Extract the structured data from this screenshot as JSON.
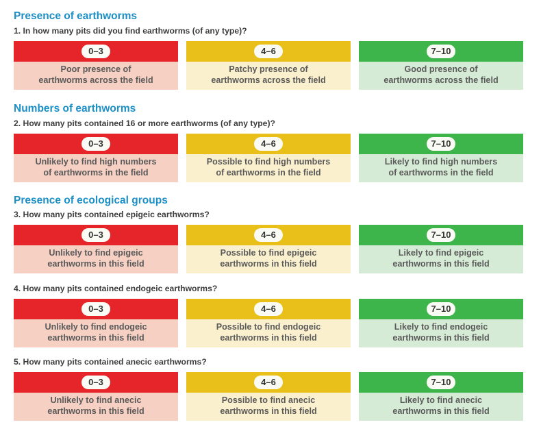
{
  "colors": {
    "section_title": "#1b8fc6",
    "red_header": "#e5252a",
    "red_body": "#f5d0c3",
    "amber_header": "#e9bf1a",
    "amber_body": "#fbf0cd",
    "green_header": "#3db54a",
    "green_body": "#d6ebd6"
  },
  "sections": [
    {
      "title": "Presence of earthworms",
      "questions": [
        {
          "question": "1. In how many pits did you find earthworms (of any type)?",
          "cards": [
            {
              "range": "0–3",
              "color": "red",
              "text": "Poor presence of\nearthworms across the field"
            },
            {
              "range": "4–6",
              "color": "amber",
              "text": "Patchy presence of\nearthworms across the field"
            },
            {
              "range": "7–10",
              "color": "green",
              "text": "Good presence of\nearthworms across the field"
            }
          ]
        }
      ]
    },
    {
      "title": "Numbers of earthworms",
      "questions": [
        {
          "question": "2. How many pits contained 16 or more earthworms (of any type)?",
          "cards": [
            {
              "range": "0–3",
              "color": "red",
              "text": "Unlikely to find high numbers\nof earthworms in the field"
            },
            {
              "range": "4–6",
              "color": "amber",
              "text": "Possible to find high numbers\nof earthworms in the field"
            },
            {
              "range": "7–10",
              "color": "green",
              "text": "Likely to find high numbers\nof earthworms in the field"
            }
          ]
        }
      ]
    },
    {
      "title": "Presence of ecological groups",
      "questions": [
        {
          "question": "3. How many pits contained epigeic earthworms?",
          "cards": [
            {
              "range": "0–3",
              "color": "red",
              "text": "Unlikely to find epigeic\nearthworms in this field"
            },
            {
              "range": "4–6",
              "color": "amber",
              "text": "Possible to find epigeic\nearthworms in this field"
            },
            {
              "range": "7–10",
              "color": "green",
              "text": "Likely to find epigeic\nearthworms in this field"
            }
          ]
        },
        {
          "question": "4. How many pits contained endogeic earthworms?",
          "cards": [
            {
              "range": "0–3",
              "color": "red",
              "text": "Unlikely to find endogeic\nearthworms in this field"
            },
            {
              "range": "4–6",
              "color": "amber",
              "text": "Possible to find endogeic\nearthworms in this field"
            },
            {
              "range": "7–10",
              "color": "green",
              "text": "Likely to find endogeic\nearthworms in this field"
            }
          ]
        },
        {
          "question": "5. How many pits contained anecic earthworms?",
          "cards": [
            {
              "range": "0–3",
              "color": "red",
              "text": "Unlikely to find anecic\nearthworms in this field"
            },
            {
              "range": "4–6",
              "color": "amber",
              "text": "Possible to find anecic\nearthworms in this field"
            },
            {
              "range": "7–10",
              "color": "green",
              "text": "Likely to find anecic\nearthworms in this field"
            }
          ]
        }
      ]
    }
  ]
}
